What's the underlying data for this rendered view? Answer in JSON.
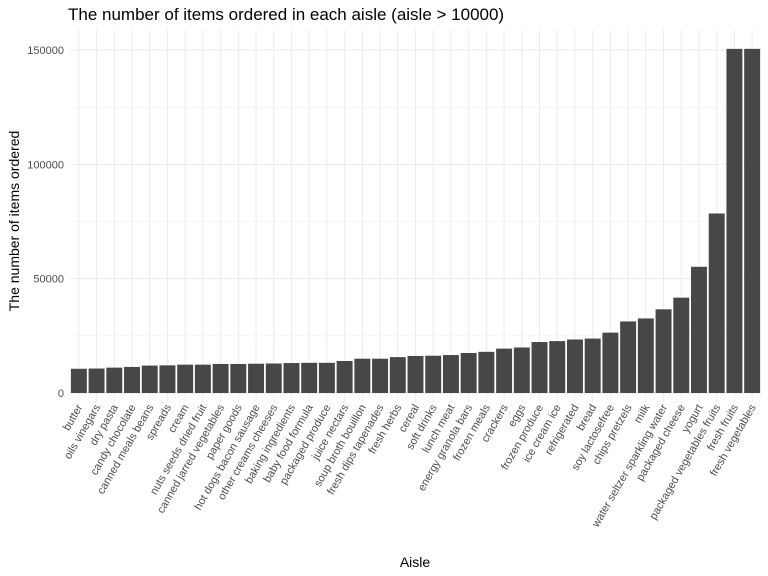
{
  "chart_data": {
    "type": "bar",
    "title": "The number of items ordered in each aisle (aisle > 10000)",
    "xlabel": "Aisle",
    "ylabel": "The number of items ordered",
    "ylim": [
      0,
      150000
    ],
    "yticks": [
      0,
      50000,
      100000,
      150000
    ],
    "ytick_labels": [
      "0",
      "50000",
      "100000",
      "150000"
    ],
    "grid": true,
    "bar_color": "#474747",
    "categories": [
      "butter",
      "oils vinegars",
      "dry pasta",
      "candy chocolate",
      "canned meals beans",
      "spreads",
      "cream",
      "nuts seeds dried fruit",
      "canned jarred vegetables",
      "paper goods",
      "hot dogs bacon sausage",
      "other creams cheeses",
      "baking ingredients",
      "baby food formula",
      "packaged produce",
      "juice nectars",
      "soup broth bouillon",
      "fresh dips tapenades",
      "fresh herbs",
      "cereal",
      "soft drinks",
      "lunch meat",
      "energy granola bars",
      "frozen meals",
      "crackers",
      "eggs",
      "frozen produce",
      "ice cream ice",
      "refrigerated",
      "bread",
      "soy lactosefree",
      "chips pretzels",
      "milk",
      "water seltzer sparkling water",
      "packaged cheese",
      "yogurt",
      "packaged vegetables fruits",
      "fresh fruits",
      "fresh vegetables"
    ],
    "values": [
      10600,
      10700,
      11100,
      11400,
      12000,
      12100,
      12400,
      12400,
      12700,
      12700,
      12800,
      12900,
      13100,
      13200,
      13200,
      14000,
      15000,
      15000,
      15700,
      16200,
      16300,
      16600,
      17500,
      18000,
      19400,
      19900,
      22300,
      22700,
      23400,
      23800,
      26400,
      31300,
      32600,
      36600,
      41700,
      55200,
      78500,
      150500,
      150500
    ]
  }
}
